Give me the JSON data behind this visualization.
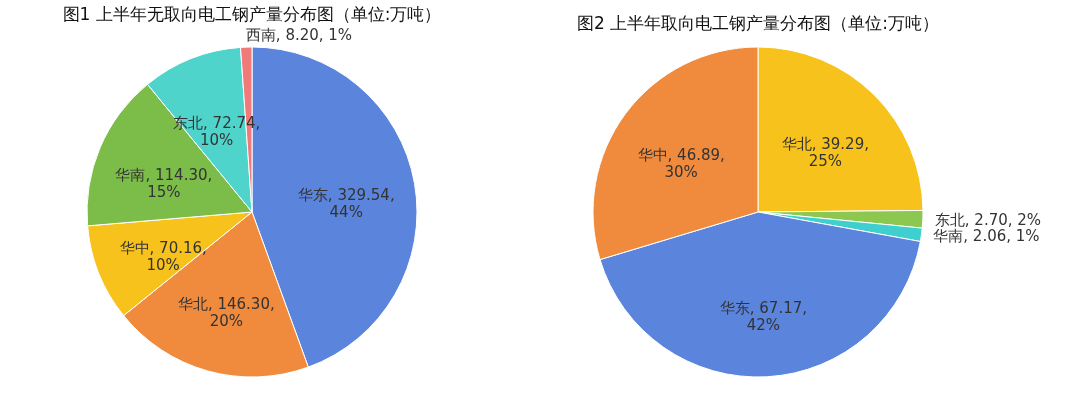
{
  "chart_data": [
    {
      "type": "pie",
      "title": "图1 上半年无取向电工钢产量分布图（单位:万吨）",
      "categories": [
        "华东",
        "华北",
        "华中",
        "华南",
        "东北",
        "西南"
      ],
      "values": [
        329.54,
        146.3,
        70.16,
        114.3,
        72.74,
        8.2
      ],
      "colors": [
        "#5b84dc",
        "#f08a3c",
        "#f7c21b",
        "#7cbd4a",
        "#4fd4cc",
        "#f07a7a"
      ],
      "value_labels": [
        "329.54, 44%",
        "146.30, 20%",
        "70.16, 10%",
        "114.30, 15%",
        "72.74, 10%",
        "8.20, 1%"
      ],
      "legend": false
    },
    {
      "type": "pie",
      "title": "图2 上半年取向电工钢产量分布图（单位:万吨）",
      "categories": [
        "华北",
        "东北",
        "华南",
        "华东",
        "华中"
      ],
      "values": [
        39.29,
        2.7,
        2.06,
        67.17,
        46.89
      ],
      "colors": [
        "#f7c21b",
        "#8cc850",
        "#3fcfcf",
        "#5b84dc",
        "#f08a3c"
      ],
      "value_labels": [
        "39.29, 25%",
        "2.70, 2%",
        "2.06, 1%",
        "67.17, 42%",
        "46.89, 30%"
      ],
      "legend": false
    }
  ]
}
